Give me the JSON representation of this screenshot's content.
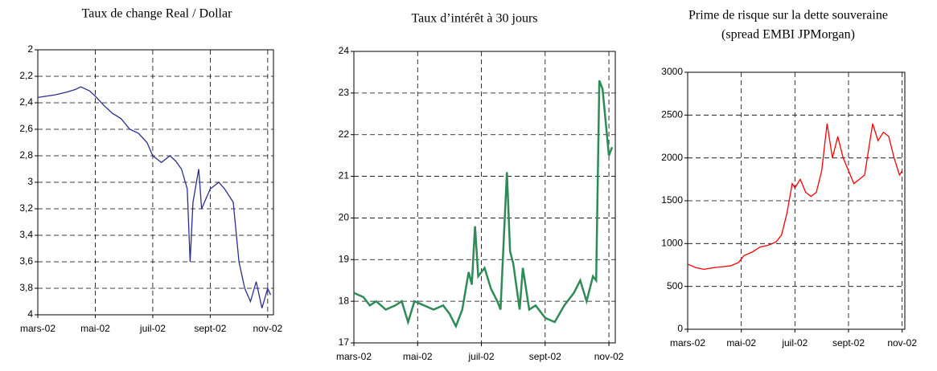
{
  "chart_data": [
    {
      "type": "line",
      "title": "Taux de change Real / Dollar",
      "color": "#2b2e8f",
      "grid": true,
      "y_inverted": true,
      "x": [
        0,
        0.3,
        0.6,
        1.0,
        1.3,
        1.5,
        1.8,
        2.0,
        2.3,
        2.6,
        2.9,
        3.2,
        3.5,
        3.8,
        4.0,
        4.3,
        4.6,
        4.8,
        5.0,
        5.2,
        5.3,
        5.4,
        5.6,
        5.7,
        6.0,
        6.3,
        6.5,
        6.8,
        7.0,
        7.2,
        7.4,
        7.6,
        7.8,
        8.0,
        8.1
      ],
      "values": [
        2.36,
        2.35,
        2.34,
        2.32,
        2.3,
        2.28,
        2.31,
        2.35,
        2.42,
        2.48,
        2.52,
        2.6,
        2.63,
        2.7,
        2.8,
        2.85,
        2.8,
        2.84,
        2.9,
        3.05,
        3.6,
        3.15,
        2.9,
        3.2,
        3.05,
        3.0,
        3.05,
        3.15,
        3.6,
        3.8,
        3.9,
        3.75,
        3.95,
        3.8,
        3.85
      ],
      "xlim": [
        0,
        8.2
      ],
      "ylim": [
        2,
        4
      ],
      "xticks": [
        {
          "value": 0,
          "label": "mars-02"
        },
        {
          "value": 2,
          "label": "mai-02"
        },
        {
          "value": 4,
          "label": "juil-02"
        },
        {
          "value": 6,
          "label": "sept-02"
        },
        {
          "value": 8,
          "label": "nov-02"
        }
      ],
      "yticks": [
        2,
        {
          "value": 2.2,
          "label": "2,2"
        },
        {
          "value": 2.4,
          "label": "2,4"
        },
        {
          "value": 2.6,
          "label": "2,6"
        },
        {
          "value": 2.8,
          "label": "2,8"
        },
        3,
        {
          "value": 3.2,
          "label": "3,2"
        },
        {
          "value": 3.4,
          "label": "3,4"
        },
        {
          "value": 3.6,
          "label": "3,6"
        },
        {
          "value": 3.8,
          "label": "3,8"
        },
        4
      ]
    },
    {
      "type": "line",
      "title": "Taux d’intérêt à 30 jours",
      "color": "#2e8b57",
      "grid": true,
      "y_inverted": false,
      "x": [
        0,
        0.3,
        0.5,
        0.7,
        1.0,
        1.3,
        1.5,
        1.7,
        1.9,
        2.2,
        2.5,
        2.8,
        3.0,
        3.2,
        3.4,
        3.6,
        3.7,
        3.8,
        3.9,
        4.1,
        4.3,
        4.5,
        4.6,
        4.8,
        4.9,
        5.0,
        5.2,
        5.3,
        5.5,
        5.7,
        6.0,
        6.3,
        6.6,
        6.9,
        7.1,
        7.3,
        7.5,
        7.6,
        7.7,
        7.8,
        7.9,
        8.0,
        8.1
      ],
      "values": [
        18.2,
        18.1,
        17.9,
        18.0,
        17.8,
        17.9,
        18.0,
        17.5,
        18.0,
        17.9,
        17.8,
        17.9,
        17.7,
        17.4,
        17.8,
        18.7,
        18.4,
        19.8,
        18.6,
        18.8,
        18.3,
        18.0,
        17.8,
        21.1,
        19.2,
        18.9,
        17.8,
        18.8,
        17.8,
        17.9,
        17.6,
        17.5,
        17.9,
        18.2,
        18.5,
        18.0,
        18.6,
        18.5,
        23.3,
        23.1,
        22.3,
        21.5,
        21.7
      ],
      "xlim": [
        0,
        8.2
      ],
      "ylim": [
        17,
        24
      ],
      "xticks": [
        {
          "value": 0,
          "label": "mars-02"
        },
        {
          "value": 2,
          "label": "mai-02"
        },
        {
          "value": 4,
          "label": "juil-02"
        },
        {
          "value": 6,
          "label": "sept-02"
        },
        {
          "value": 8,
          "label": "nov-02"
        }
      ],
      "yticks": [
        17,
        18,
        19,
        20,
        21,
        22,
        23,
        24
      ]
    },
    {
      "type": "line",
      "title": "Prime de risque sur la dette souveraine",
      "subtitle": "(spread EMBI JPMorgan)",
      "color": "#ff0000",
      "grid": true,
      "y_inverted": false,
      "x": [
        0,
        0.3,
        0.6,
        1.0,
        1.3,
        1.6,
        1.9,
        2.1,
        2.4,
        2.7,
        3.0,
        3.3,
        3.5,
        3.7,
        3.9,
        4.0,
        4.2,
        4.4,
        4.6,
        4.8,
        5.0,
        5.2,
        5.4,
        5.6,
        5.8,
        6.0,
        6.2,
        6.4,
        6.6,
        6.9,
        7.1,
        7.3,
        7.5,
        7.7,
        7.9,
        8.0
      ],
      "values": [
        760,
        720,
        700,
        720,
        730,
        740,
        780,
        860,
        900,
        960,
        980,
        1020,
        1100,
        1350,
        1700,
        1650,
        1750,
        1600,
        1550,
        1600,
        1850,
        2400,
        2000,
        2250,
        2000,
        1850,
        1700,
        1750,
        1800,
        2400,
        2200,
        2300,
        2250,
        2000,
        1800,
        1850
      ],
      "xlim": [
        0,
        8.1
      ],
      "ylim": [
        0,
        3000
      ],
      "xticks": [
        {
          "value": 0,
          "label": "mars-02"
        },
        {
          "value": 2,
          "label": "mai-02"
        },
        {
          "value": 4,
          "label": "juil-02"
        },
        {
          "value": 6,
          "label": "sept-02"
        },
        {
          "value": 8,
          "label": "nov-02"
        }
      ],
      "yticks": [
        0,
        500,
        1000,
        1500,
        2000,
        2500,
        3000
      ]
    }
  ]
}
